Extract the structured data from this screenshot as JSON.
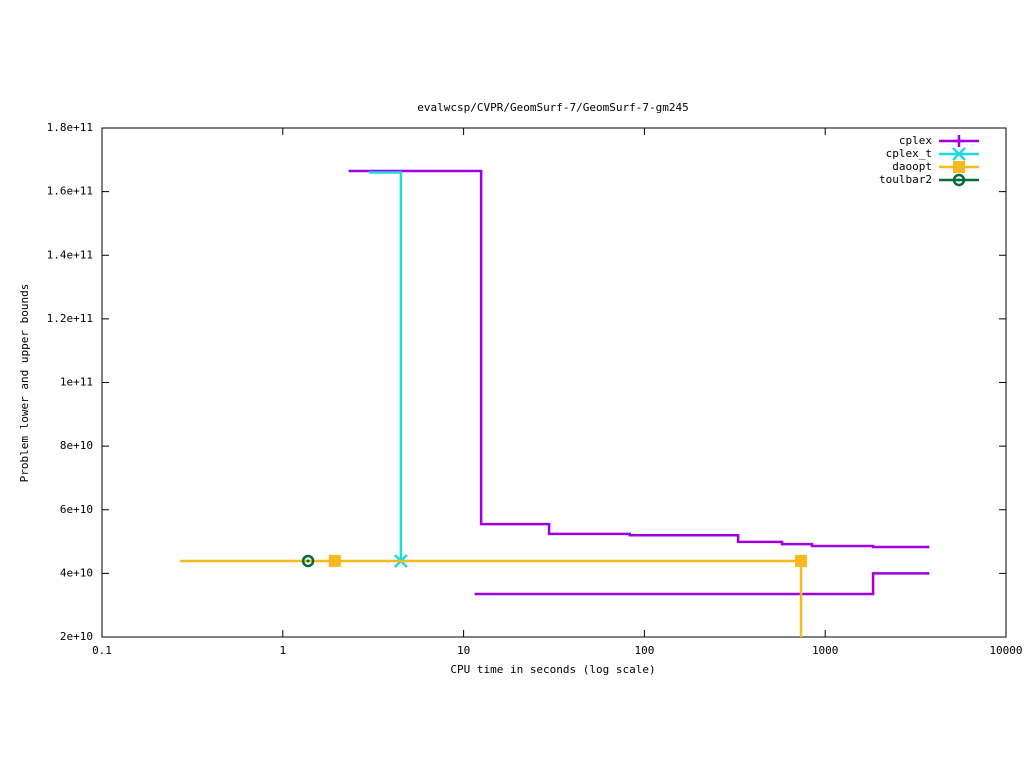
{
  "chart_data": {
    "type": "step",
    "title": "evalwcsp/CVPR/GeomSurf-7/GeomSurf-7-gm245",
    "x_label": "CPU time in seconds (log scale)",
    "y_label": "Problem lower and upper bounds",
    "x_scale": "log",
    "xlim": [
      0.1,
      10000
    ],
    "xticks": [
      0.1,
      1,
      10,
      100,
      1000,
      10000
    ],
    "ylim": [
      20000000000,
      180000000000
    ],
    "yticks": [
      {
        "value": 20000000000,
        "label": "2e+10"
      },
      {
        "value": 40000000000,
        "label": "4e+10"
      },
      {
        "value": 60000000000,
        "label": "6e+10"
      },
      {
        "value": 80000000000,
        "label": "8e+10"
      },
      {
        "value": 100000000000,
        "label": "1e+11"
      },
      {
        "value": 120000000000,
        "label": "1.2e+11"
      },
      {
        "value": 140000000000,
        "label": "1.4e+11"
      },
      {
        "value": 160000000000,
        "label": "1.6e+11"
      },
      {
        "value": 180000000000,
        "label": "1.8e+11"
      }
    ],
    "legend": "top-right",
    "series": [
      {
        "name": "cplex",
        "color": "#a000e0",
        "marker": "plus",
        "x": [
          2.35,
          12.5,
          29.7,
          83,
          330,
          577,
          845,
          1840,
          3700
        ],
        "values": [
          166500000000,
          55500000000,
          52400000000,
          52000000000,
          49900000000,
          49200000000,
          48600000000,
          48300000000,
          48300000000
        ],
        "lower_x": [
          11.7,
          1840,
          3700
        ],
        "lower_values": [
          33500000000,
          40000000000,
          40000000000
        ]
      },
      {
        "name": "cplex_t",
        "color": "#20d8e0",
        "marker": "cross",
        "x": [
          3.04,
          4.5
        ],
        "values": [
          166000000000,
          43900000000
        ],
        "marker_indices": [
          1
        ]
      },
      {
        "name": "daoopt",
        "color": "#f8b820",
        "marker": "square",
        "x": [
          0.274,
          1.94,
          735,
          735
        ],
        "values": [
          43900000000,
          43900000000,
          43900000000,
          10000000000
        ],
        "marker_indices": [
          1,
          2
        ]
      },
      {
        "name": "toulbar2",
        "color": "#006c3c",
        "marker": "circle",
        "x": [
          1.38
        ],
        "values": [
          43900000000
        ],
        "marker_indices": [
          0
        ]
      }
    ]
  }
}
